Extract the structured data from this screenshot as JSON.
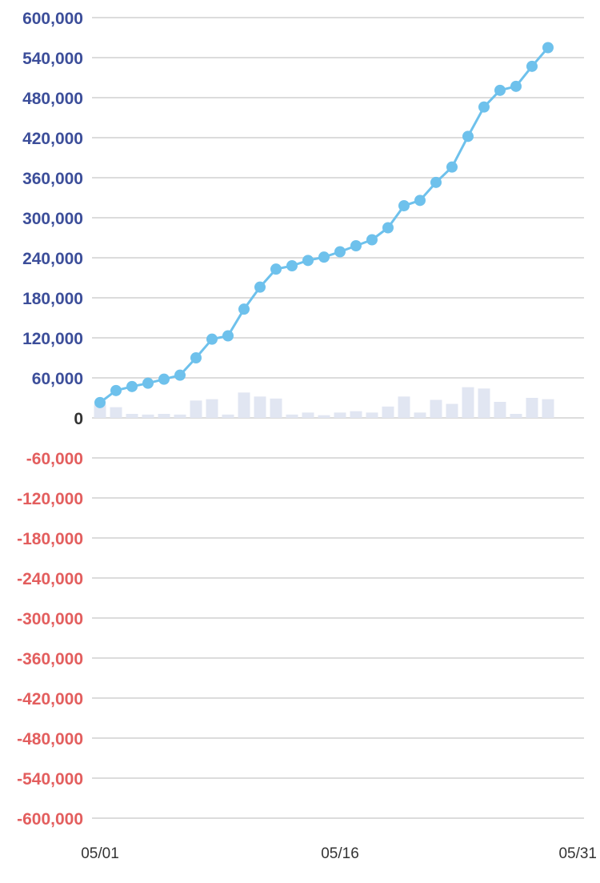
{
  "chart_data": {
    "type": "line",
    "x": [
      "05/01",
      "05/02",
      "05/03",
      "05/04",
      "05/05",
      "05/06",
      "05/07",
      "05/08",
      "05/09",
      "05/10",
      "05/11",
      "05/12",
      "05/13",
      "05/14",
      "05/15",
      "05/16",
      "05/17",
      "05/18",
      "05/19",
      "05/20",
      "05/21",
      "05/22",
      "05/23",
      "05/24",
      "05/25",
      "05/26",
      "05/27",
      "05/28",
      "05/29"
    ],
    "x_tick_labels": [
      "05/01",
      "05/16",
      "05/31"
    ],
    "x_range": [
      "05/01",
      "05/31"
    ],
    "series": [
      {
        "kind": "line",
        "color": "#6EC1EC",
        "values": [
          23000,
          41000,
          47000,
          52000,
          58000,
          64000,
          90000,
          118000,
          123000,
          163000,
          196000,
          223000,
          228000,
          236000,
          241000,
          249000,
          258000,
          267000,
          285000,
          318000,
          326000,
          353000,
          376000,
          422000,
          466000,
          491000,
          497000,
          527000,
          555000
        ]
      },
      {
        "kind": "bar",
        "color": "#E1E6F2",
        "values": [
          20000,
          16000,
          6000,
          5000,
          6000,
          5000,
          26000,
          28000,
          5000,
          38000,
          32000,
          29000,
          5000,
          8000,
          4000,
          8000,
          10000,
          8000,
          17000,
          32000,
          8000,
          27000,
          21000,
          46000,
          44000,
          24000,
          6000,
          30000,
          28000
        ]
      }
    ],
    "ylim": [
      -600000,
      600000
    ],
    "y_ticks": [
      600000,
      540000,
      480000,
      420000,
      360000,
      300000,
      240000,
      180000,
      120000,
      60000,
      0,
      -60000,
      -120000,
      -180000,
      -240000,
      -300000,
      -360000,
      -420000,
      -480000,
      -540000,
      -600000
    ],
    "y_tick_labels": [
      "600,000",
      "540,000",
      "480,000",
      "420,000",
      "360,000",
      "300,000",
      "240,000",
      "180,000",
      "120,000",
      "60,000",
      "0",
      "-60,000",
      "-120,000",
      "-180,000",
      "-240,000",
      "-300,000",
      "-360,000",
      "-420,000",
      "-480,000",
      "-540,000",
      "-600,000"
    ],
    "grid": true,
    "title": "",
    "xlabel": "",
    "ylabel": "",
    "colors": {
      "positive_tick": "#3C4E9A",
      "negative_tick": "#E35E5E",
      "zero_tick": "#333333",
      "x_tick": "#333333",
      "grid": "#DCDCDC"
    }
  }
}
